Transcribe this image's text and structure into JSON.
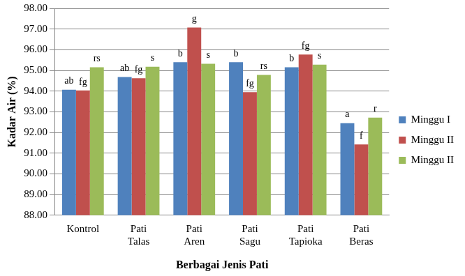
{
  "chart_data": {
    "type": "bar",
    "x_label": "Berbagai Jenis Pati",
    "y_label": "Kadar Air (%)",
    "categories": [
      "Kontrol",
      "Pati Talas",
      "Pati Aren",
      "Pati Sagu",
      "Pati Tapioka",
      "Pati Beras"
    ],
    "series": [
      {
        "name": "Minggu I",
        "color": "#4f81bd",
        "values": [
          94.07,
          94.68,
          95.4,
          95.4,
          95.15,
          92.45
        ],
        "annotations": [
          "ab",
          "ab",
          "b",
          "b",
          "b",
          "a"
        ]
      },
      {
        "name": "Minggu II",
        "color": "#c0504d",
        "values": [
          94.03,
          94.62,
          97.07,
          93.95,
          95.77,
          91.42
        ],
        "annotations": [
          "fg",
          "fg",
          "g",
          "fg",
          "fg",
          "f"
        ]
      },
      {
        "name": "Minggu II",
        "color": "#9bbb59",
        "values": [
          95.15,
          95.18,
          95.32,
          94.78,
          95.28,
          92.72
        ],
        "annotations": [
          "rs",
          "s",
          "s",
          "rs",
          "s",
          "r"
        ]
      }
    ],
    "ylim": [
      88,
      98
    ],
    "yticks": [
      {
        "value": 88,
        "label": "88.00"
      },
      {
        "value": 89,
        "label": "89.00"
      },
      {
        "value": 90,
        "label": "90.00"
      },
      {
        "value": 91,
        "label": "91.00"
      },
      {
        "value": 92,
        "label": "92.00"
      },
      {
        "value": 93,
        "label": "93.00"
      },
      {
        "value": 94,
        "label": "94.00"
      },
      {
        "value": 95,
        "label": "95.00"
      },
      {
        "value": 96,
        "label": "96.00"
      },
      {
        "value": 97,
        "label": "97.00"
      },
      {
        "value": 98,
        "label": "98.00"
      }
    ],
    "grid": true,
    "legend": "right"
  }
}
